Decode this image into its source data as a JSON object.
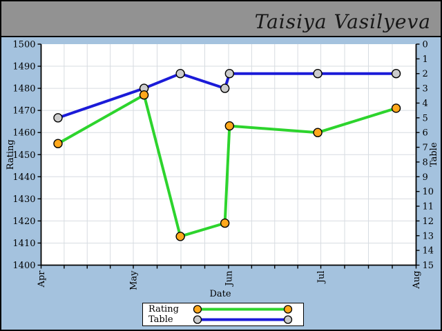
{
  "window": {
    "signature": "Taisiya Vasilyeva"
  },
  "colors_note": "see chart_data.colors",
  "chart_data": {
    "type": "line",
    "title": "",
    "xlabel": "Date",
    "left_axis": {
      "label": "Rating",
      "min": 1400,
      "max": 1500,
      "tick_step": 10
    },
    "right_axis": {
      "label": "Table",
      "min": 0,
      "max": 15,
      "tick_step": 1,
      "inverted": true
    },
    "x_axis": {
      "label": "Date",
      "months": [
        {
          "name": "Apr",
          "days": 30
        },
        {
          "name": "May",
          "days": 31
        },
        {
          "name": "Jun",
          "days": 30
        },
        {
          "name": "Jul",
          "days": 31
        },
        {
          "name": "Aug",
          "days": 0
        }
      ],
      "total_days": 122,
      "minor_ticks_per_month": 4
    },
    "grid": true,
    "legend_position": "bottom-center",
    "series": [
      {
        "name": "Rating",
        "axis": "left",
        "line_color": "#2dd42d",
        "marker_color": "#ffa81c",
        "points": [
          {
            "date": "Apr 6",
            "day": 5.5,
            "value": 1455
          },
          {
            "date": "May 4",
            "day": 33.5,
            "value": 1477
          },
          {
            "date": "May 16",
            "day": 45.3,
            "value": 1413
          },
          {
            "date": "May 31",
            "day": 59.8,
            "value": 1419
          },
          {
            "date": "Jun 1",
            "day": 61.3,
            "value": 1463
          },
          {
            "date": "Jun 30",
            "day": 90.0,
            "value": 1460
          },
          {
            "date": "Jul 25",
            "day": 115.5,
            "value": 1471
          }
        ]
      },
      {
        "name": "Table",
        "axis": "right",
        "line_color": "#1b1bd8",
        "marker_color": "#cccccc",
        "points": [
          {
            "date": "Apr 6",
            "day": 5.5,
            "value": 5
          },
          {
            "date": "May 4",
            "day": 33.5,
            "value": 3
          },
          {
            "date": "May 16",
            "day": 45.3,
            "value": 2
          },
          {
            "date": "May 31",
            "day": 59.8,
            "value": 3
          },
          {
            "date": "Jun 1",
            "day": 61.3,
            "value": 2
          },
          {
            "date": "Jun 30",
            "day": 90.0,
            "value": 2
          },
          {
            "date": "Jul 25",
            "day": 115.5,
            "value": 2
          }
        ]
      }
    ],
    "colors": {
      "header_bg": "#929292",
      "body_bg": "#a4c2de",
      "plot_bg": "#ffffff",
      "grid": "#d7dce1",
      "axis": "#000000",
      "legend_bg": "#ffffff",
      "signature_text": "#161616"
    }
  }
}
